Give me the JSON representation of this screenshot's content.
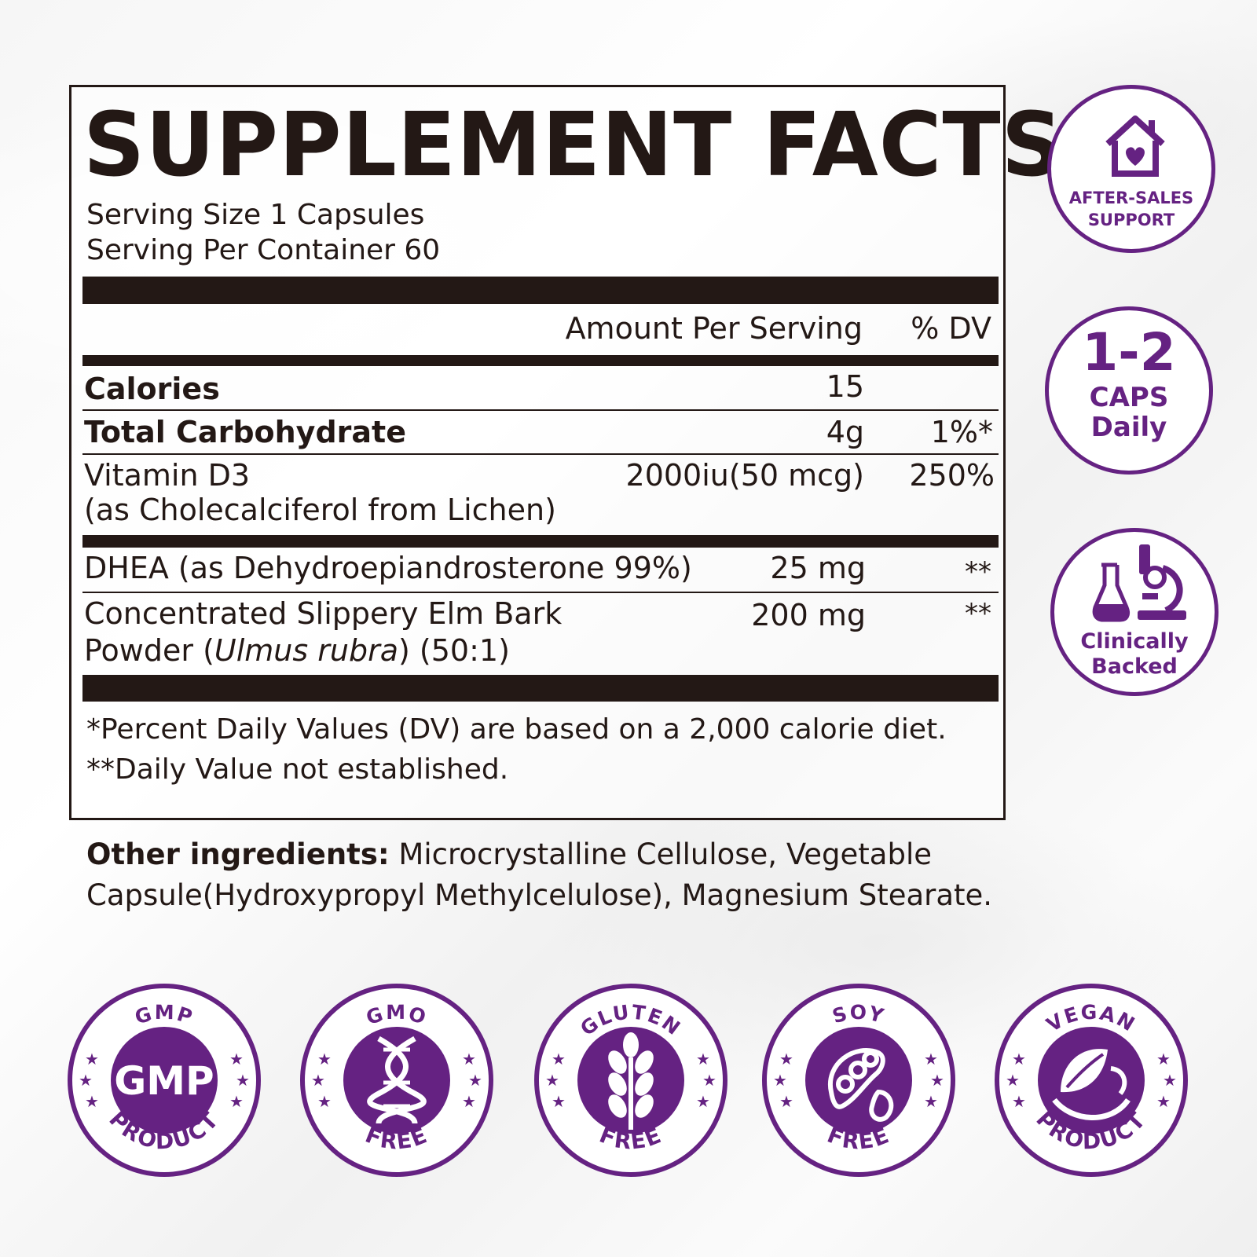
{
  "label": {
    "title": "SUPPLEMENT FACTS",
    "serving_size": "Serving Size 1 Capsules",
    "servings_per_container": "Serving Per Container 60",
    "header_amount": "Amount Per Serving",
    "header_dv": "% DV",
    "rows": [
      {
        "name": "Calories",
        "amount": "15",
        "dv": ""
      },
      {
        "name": "Total Carbohydrate",
        "amount": "4g",
        "dv": "1%*"
      },
      {
        "name": "Vitamin D3",
        "name2": "(as Cholecalciferol from Lichen)",
        "amount": "2000iu(50 mcg)",
        "dv": "250%"
      },
      {
        "name": "DHEA (as Dehydroepiandrosterone 99%)",
        "amount": "25 mg",
        "dv": "**"
      },
      {
        "name": "Concentrated Slippery Elm Bark",
        "name2_prefix": "Powder (",
        "name2_italic": "Ulmus rubra",
        "name2_suffix": ") (50:1)",
        "amount": "200 mg",
        "dv": "**"
      }
    ],
    "footnote1": "*Percent Daily Values (DV) are based on a 2,000 calorie diet.",
    "footnote2": "**Daily Value not established."
  },
  "other_ingredients": {
    "label": "Other ingredients:",
    "text": " Microcrystalline Cellulose, Vegetable Capsule(Hydroxypropyl Methylcelulose), Magnesium Stearate."
  },
  "side_badges": {
    "support_line1": "AFTER-SALES",
    "support_line2": "SUPPORT",
    "dose_big": "1-2",
    "dose_line2": "CAPS",
    "dose_line3": "Daily",
    "clinical_line1": "Clinically",
    "clinical_line2": "Backed"
  },
  "bottom_badges": [
    {
      "top": "GMP",
      "bottom": "PRODUCT",
      "center": "GMP",
      "icon": "gmp-text-icon"
    },
    {
      "top": "GMO",
      "bottom": "FREE",
      "center": "",
      "icon": "dna-icon"
    },
    {
      "top": "GLUTEN",
      "bottom": "FREE",
      "center": "",
      "icon": "wheat-icon"
    },
    {
      "top": "SOY",
      "bottom": "FREE",
      "center": "",
      "icon": "soybean-icon"
    },
    {
      "top": "VEGAN",
      "bottom": "PRODUCT",
      "center": "",
      "icon": "leaf-icon"
    }
  ],
  "colors": {
    "brand_purple": "#652282",
    "ink": "#231815"
  }
}
